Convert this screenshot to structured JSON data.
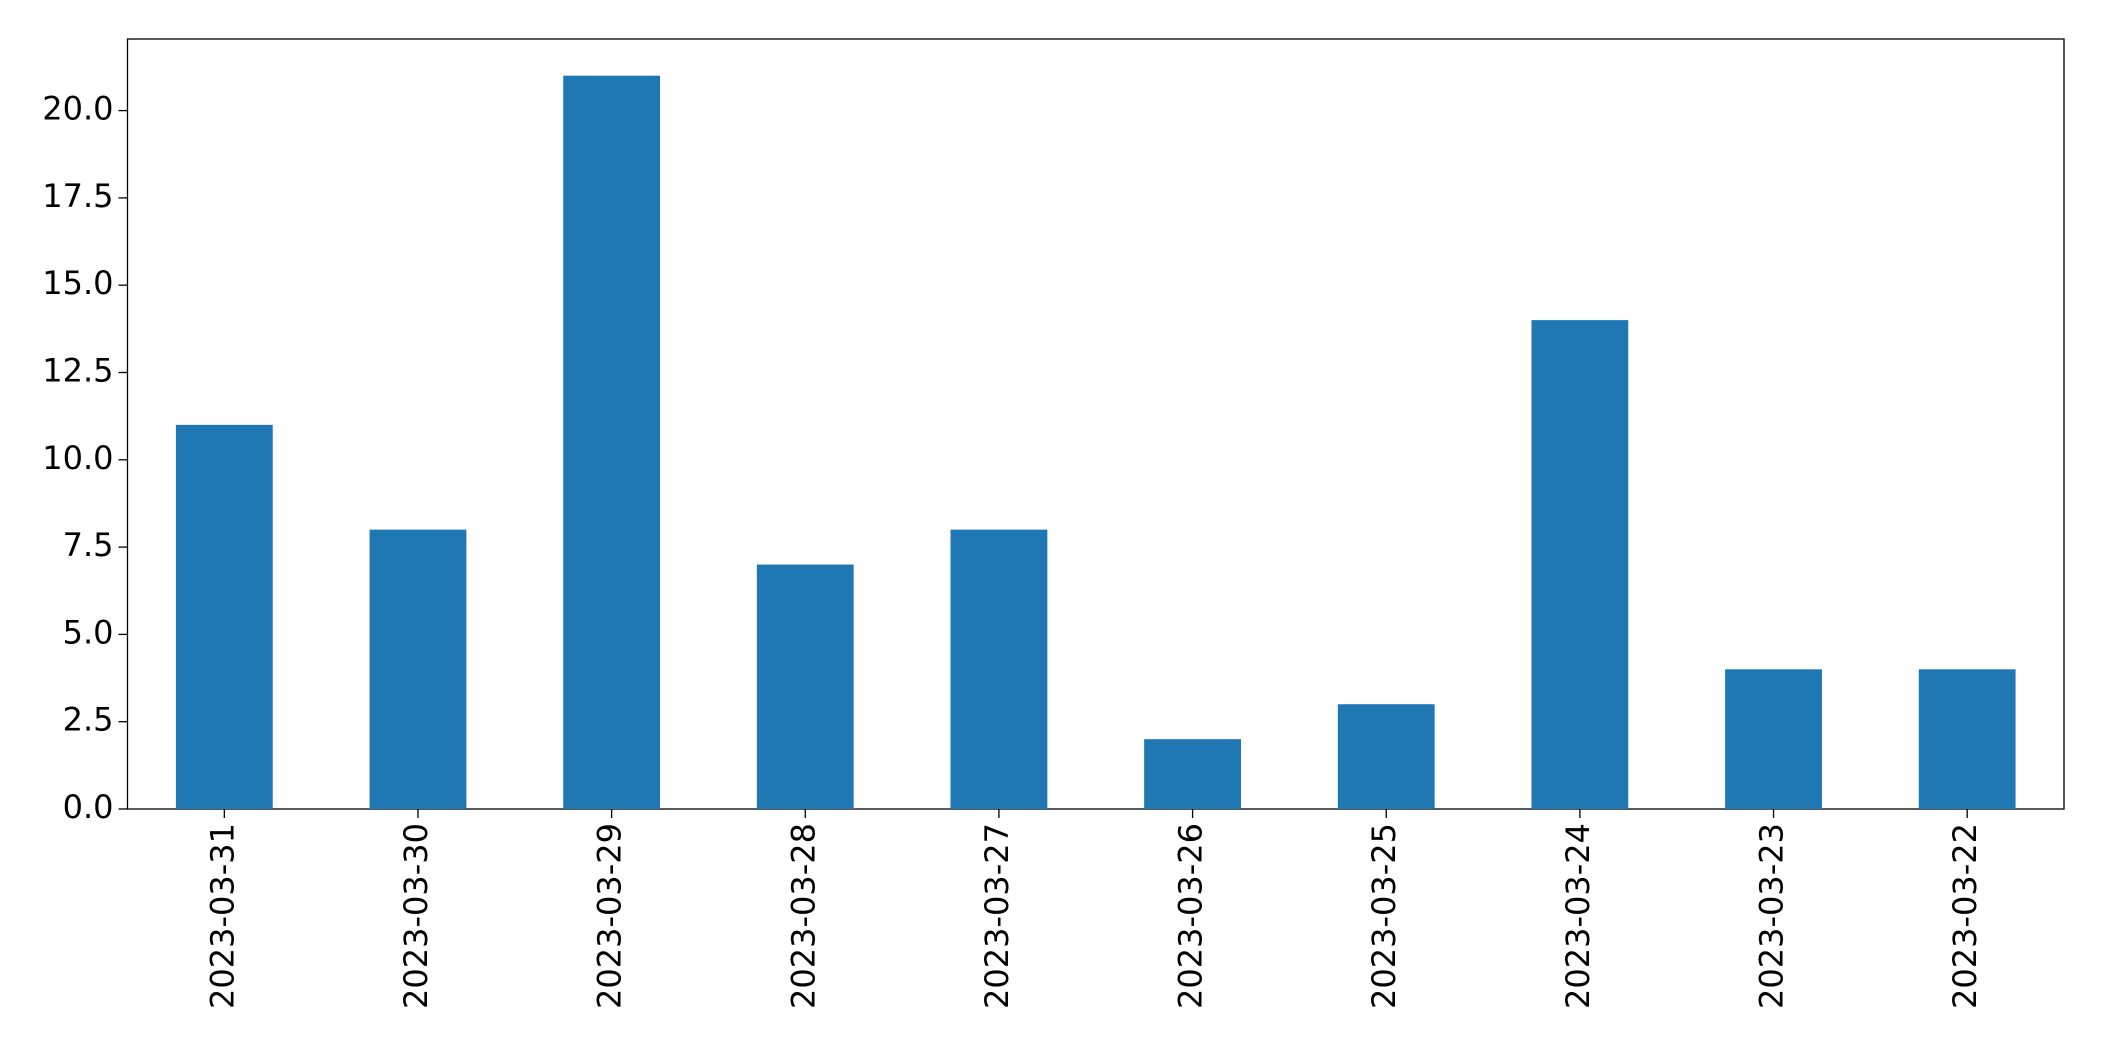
{
  "chart_data": {
    "type": "bar",
    "categories": [
      "2023-03-31",
      "2023-03-30",
      "2023-03-29",
      "2023-03-28",
      "2023-03-27",
      "2023-03-26",
      "2023-03-25",
      "2023-03-24",
      "2023-03-23",
      "2023-03-22"
    ],
    "values": [
      11,
      8,
      21,
      7,
      8,
      2,
      3,
      14,
      4,
      4
    ],
    "color": "#1f77b4",
    "ylim": [
      0,
      22.05
    ],
    "yticks": [
      {
        "value": 0,
        "label": "0.0"
      },
      2.5,
      {
        "value": 5,
        "label": "5.0"
      },
      7.5,
      {
        "value": 10,
        "label": "10.0"
      },
      12.5,
      {
        "value": 15,
        "label": "15.0"
      },
      17.5,
      {
        "value": 20,
        "label": "20.0"
      }
    ],
    "grid": false
  }
}
